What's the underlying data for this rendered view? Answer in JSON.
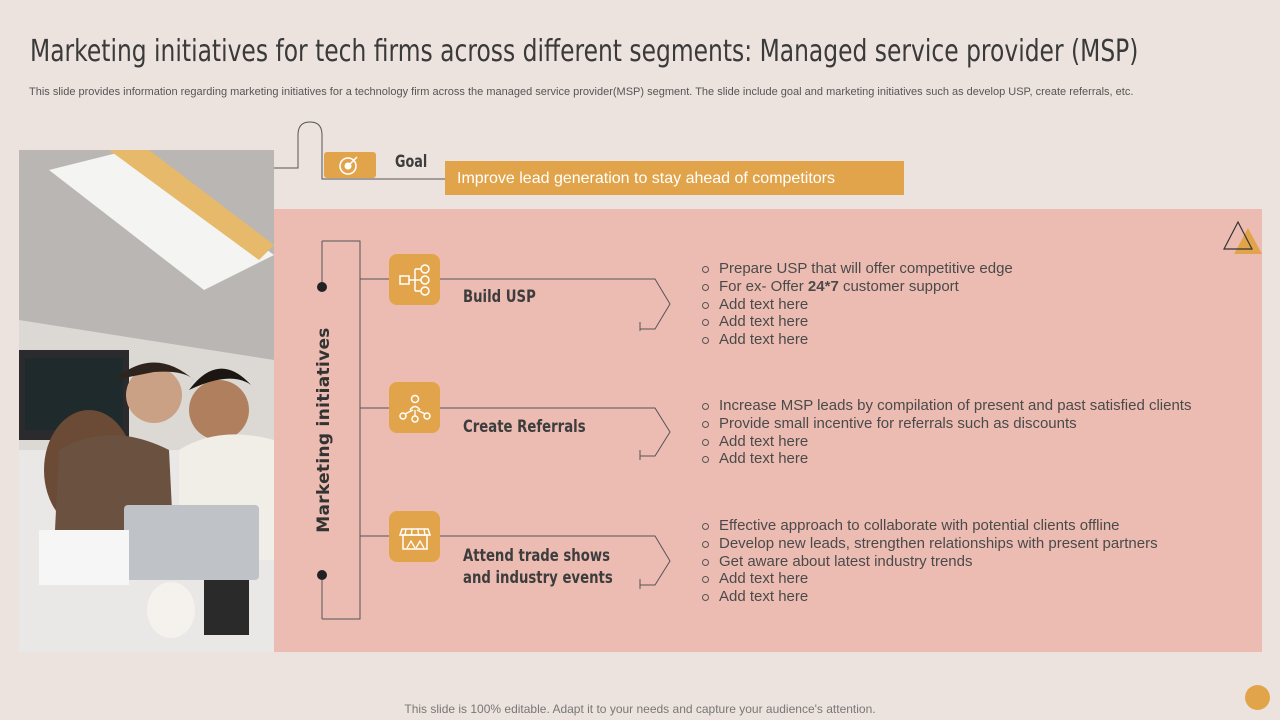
{
  "title": "Marketing initiatives for tech firms across different segments: Managed service provider (MSP)",
  "subtitle": "This slide provides information regarding marketing initiatives for a technology firm across the managed service provider(MSP) segment. The slide include goal and marketing initiatives such as develop USP,  create referrals, etc.",
  "goal": {
    "label": "Goal",
    "text": "Improve lead generation to stay ahead of competitors",
    "icon": "target-icon"
  },
  "section_label": "Marketing initiatives",
  "initiatives": [
    {
      "title": "Build USP",
      "icon": "flowchart-icon",
      "bullets": [
        {
          "pre": "Prepare USP that will offer competitive edge",
          "bold": "",
          "post": ""
        },
        {
          "pre": "For ex- Offer ",
          "bold": "24*7",
          "post": " customer support"
        },
        {
          "pre": "Add text here",
          "bold": "",
          "post": ""
        },
        {
          "pre": "Add text here",
          "bold": "",
          "post": ""
        },
        {
          "pre": "Add text here",
          "bold": "",
          "post": ""
        }
      ]
    },
    {
      "title": "Create  Referrals",
      "icon": "network-people-icon",
      "bullets": [
        {
          "pre": "Increase MSP leads by compilation of present and past satisfied clients",
          "bold": "",
          "post": ""
        },
        {
          "pre": "Provide small incentive for referrals such as discounts",
          "bold": "",
          "post": ""
        },
        {
          "pre": "Add text here",
          "bold": "",
          "post": ""
        },
        {
          "pre": "Add text here",
          "bold": "",
          "post": ""
        }
      ]
    },
    {
      "title_line1": "Attend trade shows",
      "title_line2": "and industry events",
      "icon": "storefront-icon",
      "bullets": [
        {
          "pre": "Effective approach to collaborate with potential clients offline",
          "bold": "",
          "post": ""
        },
        {
          "pre": "Develop new leads, strengthen relationships with present partners",
          "bold": "",
          "post": ""
        },
        {
          "pre": "Get aware about latest industry trends",
          "bold": "",
          "post": ""
        },
        {
          "pre": "Add text here",
          "bold": "",
          "post": ""
        },
        {
          "pre": "Add text here",
          "bold": "",
          "post": ""
        }
      ]
    }
  ],
  "footer": "This slide is 100% editable. Adapt it to your needs and capture your audience's attention.",
  "colors": {
    "accent": "#e2a44a",
    "panel": "#ecbcb2",
    "background": "#ede3de"
  }
}
